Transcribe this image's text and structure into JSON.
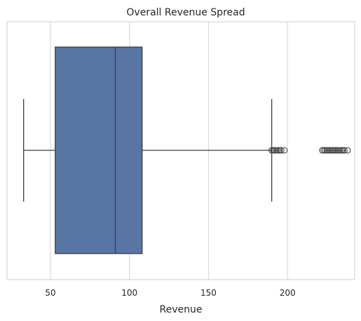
{
  "chart_data": {
    "type": "boxplot",
    "orientation": "horizontal",
    "title": "Overall Revenue Spread",
    "xlabel": "Revenue",
    "ylabel": "",
    "xlim": [
      22.5,
      242.5
    ],
    "xticks": [
      50,
      100,
      150,
      200
    ],
    "grid": "vertical",
    "box": {
      "whisker_low": 33,
      "q1": 53,
      "median": 91,
      "q3": 108,
      "whisker_high": 190
    },
    "outliers": [
      190,
      191,
      192,
      193,
      194,
      195,
      196,
      198,
      222,
      223,
      224,
      225,
      226,
      227,
      228,
      229,
      230,
      231,
      232,
      233,
      234,
      235,
      236,
      238
    ],
    "colors": {
      "box_fill": "#5875a4",
      "line": "#3d3d3d",
      "grid": "#d9d9d9",
      "frame": "#cccccc"
    }
  }
}
